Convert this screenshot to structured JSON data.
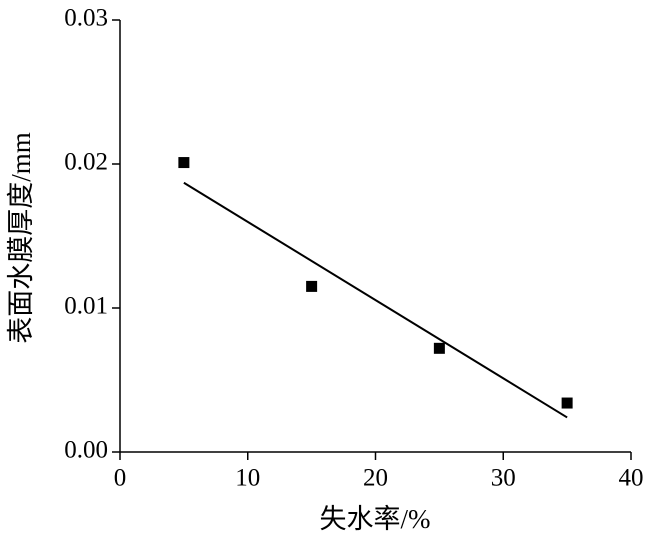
{
  "chart_data": {
    "type": "scatter",
    "xlabel": "失水率/%",
    "ylabel": "表面水膜厚度/mm",
    "series": [
      {
        "mode": "markers",
        "marker": "square",
        "color": "#000000",
        "x": [
          5,
          15,
          25,
          35
        ],
        "values": [
          0.0201,
          0.0115,
          0.0072,
          0.0034
        ]
      },
      {
        "mode": "line",
        "color": "#000000",
        "x": [
          5,
          35
        ],
        "values": [
          0.0187,
          0.0024
        ]
      }
    ],
    "xlim": [
      0,
      40
    ],
    "xticks": [
      0,
      10,
      20,
      30,
      40
    ],
    "ylim": [
      0,
      0.03
    ],
    "yticks": [
      {
        "value": 0,
        "label": "0.00"
      },
      {
        "value": 0.01,
        "label": "0.01"
      },
      {
        "value": 0.02,
        "label": "0.02"
      },
      {
        "value": 0.03,
        "label": "0.03"
      }
    ],
    "grid": false
  }
}
